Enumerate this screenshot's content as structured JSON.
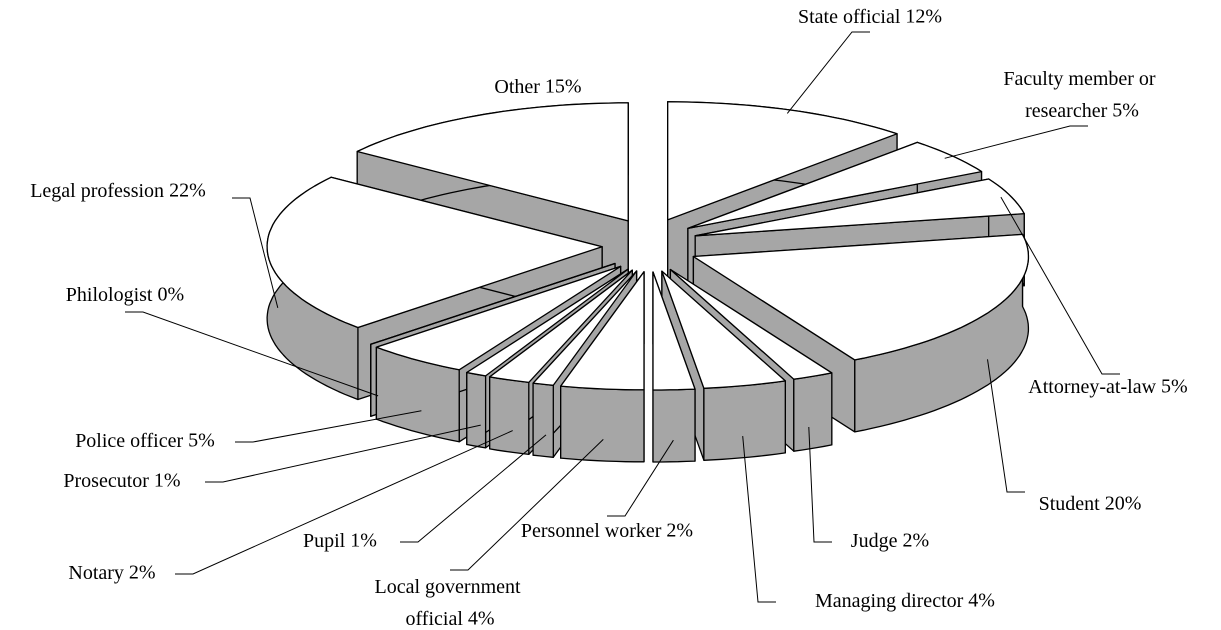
{
  "chart_data": {
    "type": "pie3d",
    "categories": [
      "State official",
      "Faculty member or researcher",
      "Attorney-at-law",
      "Student",
      "Judge",
      "Managing director",
      "Personnel worker",
      "Local government official",
      "Pupil",
      "Notary",
      "Prosecutor",
      "Police officer",
      "Philologist",
      "Legal profession",
      "Other"
    ],
    "values": [
      12,
      5,
      5,
      20,
      2,
      4,
      2,
      4,
      1,
      2,
      1,
      5,
      0,
      22,
      15
    ],
    "value_labels": [
      "12%",
      "5%",
      "5%",
      "20%",
      "2%",
      "4%",
      "2%",
      "4%",
      "1%",
      "2%",
      "1%",
      "5%",
      "0%",
      "22%",
      "15%"
    ],
    "color": "#ffffff",
    "side_color": "#a6a6a6"
  }
}
